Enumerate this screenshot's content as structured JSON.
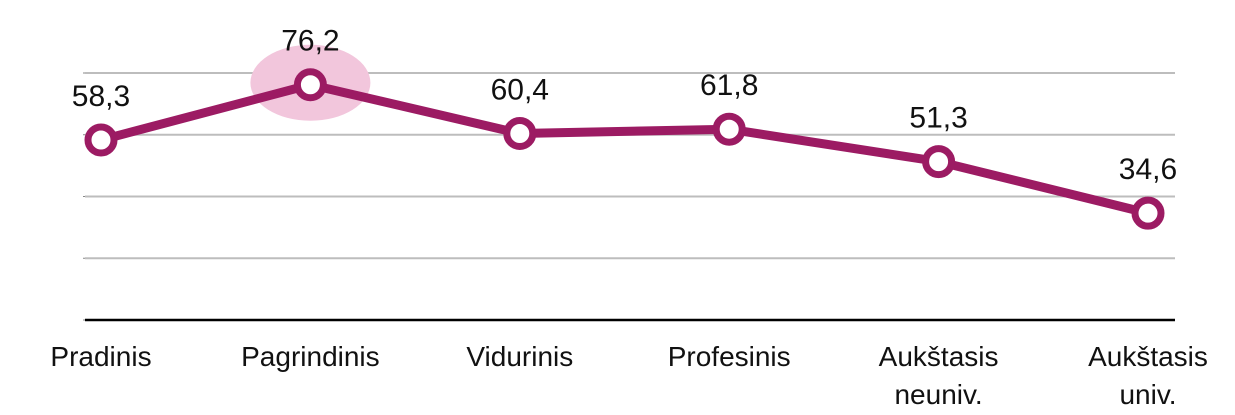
{
  "chart_data": {
    "type": "line",
    "categories": [
      "Pradinis",
      "Pagrindinis",
      "Vidurinis",
      "Profesinis",
      "Aukštasis neuniv.",
      "Aukštasis univ."
    ],
    "series": [
      {
        "color": "#9c1b63",
        "values": [
          58.3,
          76.2,
          60.4,
          61.8,
          51.3,
          34.6
        ],
        "value_labels": [
          "58,3",
          "76,2",
          "60,4",
          "61,8",
          "51,3",
          "34,6"
        ]
      }
    ],
    "ylim": [
      0,
      80
    ],
    "yticks": [
      0,
      20,
      40,
      60,
      80
    ],
    "grid": true,
    "highlight_index": 1
  }
}
